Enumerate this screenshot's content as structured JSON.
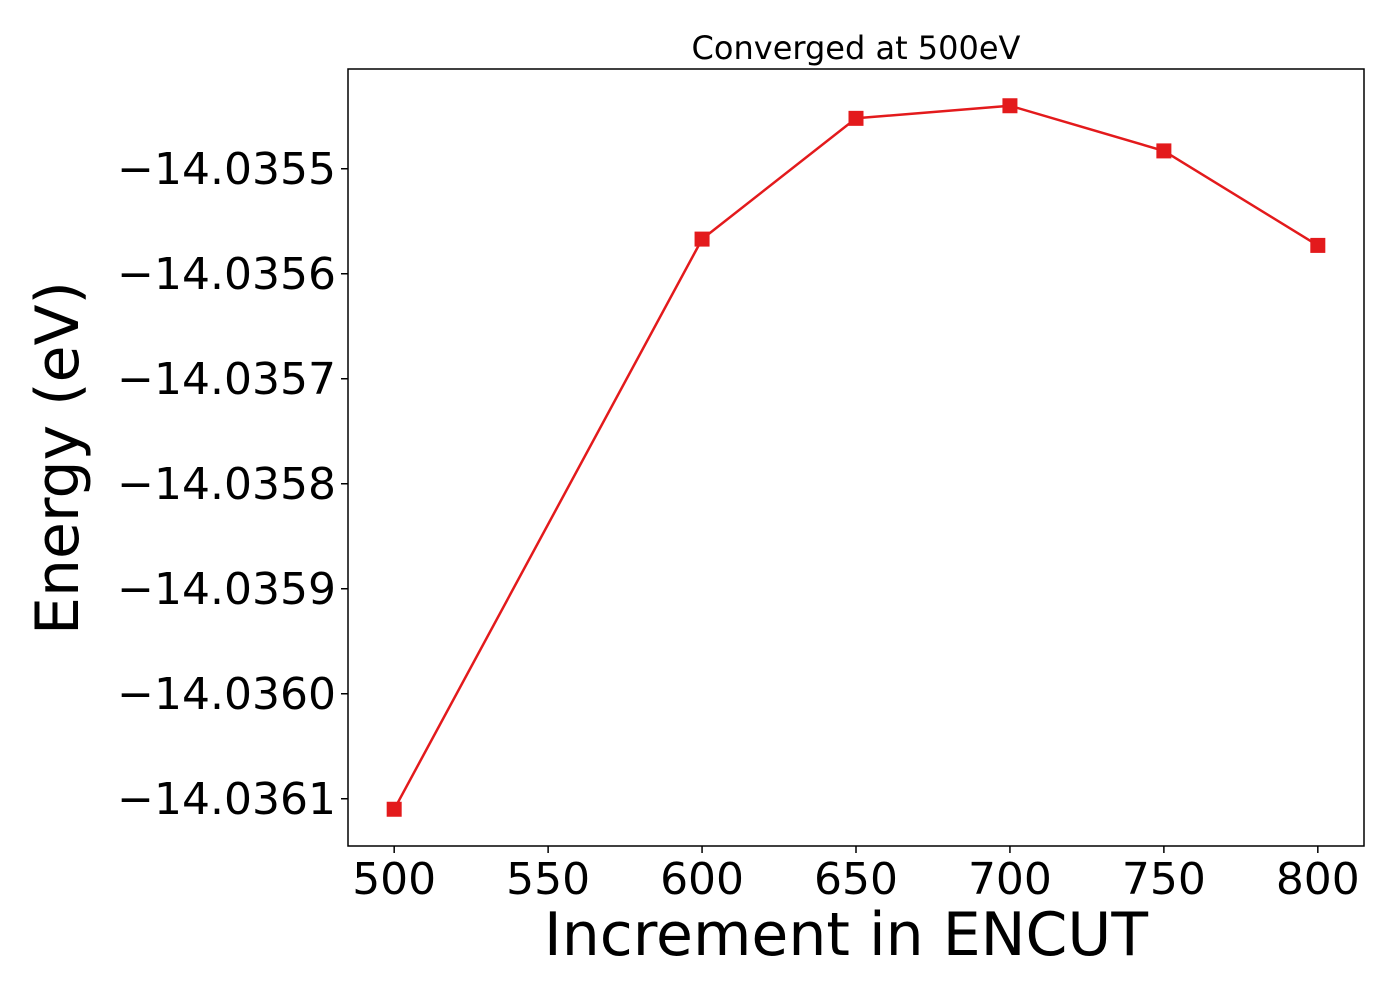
{
  "chart_data": {
    "type": "line",
    "title": "Converged at 500eV",
    "xlabel": "Increment in ENCUT",
    "ylabel": "Energy (eV)",
    "x": [
      500,
      600,
      650,
      700,
      750,
      800
    ],
    "series": [
      {
        "values": [
          -14.03611,
          -14.035567,
          -14.035452,
          -14.03544,
          -14.035483,
          -14.035573
        ],
        "color": "#e31a1c",
        "marker": "square"
      }
    ],
    "xlim": [
      485,
      815
    ],
    "ylim": [
      -14.036145,
      -14.035405
    ],
    "xticks": [
      500,
      550,
      600,
      650,
      700,
      750,
      800
    ],
    "xtick_labels": [
      "500",
      "550",
      "600",
      "650",
      "700",
      "750",
      "800"
    ],
    "yticks": [
      -14.0355,
      -14.0356,
      -14.0357,
      -14.0358,
      -14.0359,
      -14.036,
      -14.0361
    ],
    "ytick_labels": [
      "−14.0355",
      "−14.0356",
      "−14.0357",
      "−14.0358",
      "−14.0359",
      "−14.0360",
      "−14.0361"
    ],
    "grid": false,
    "legend": "none"
  }
}
